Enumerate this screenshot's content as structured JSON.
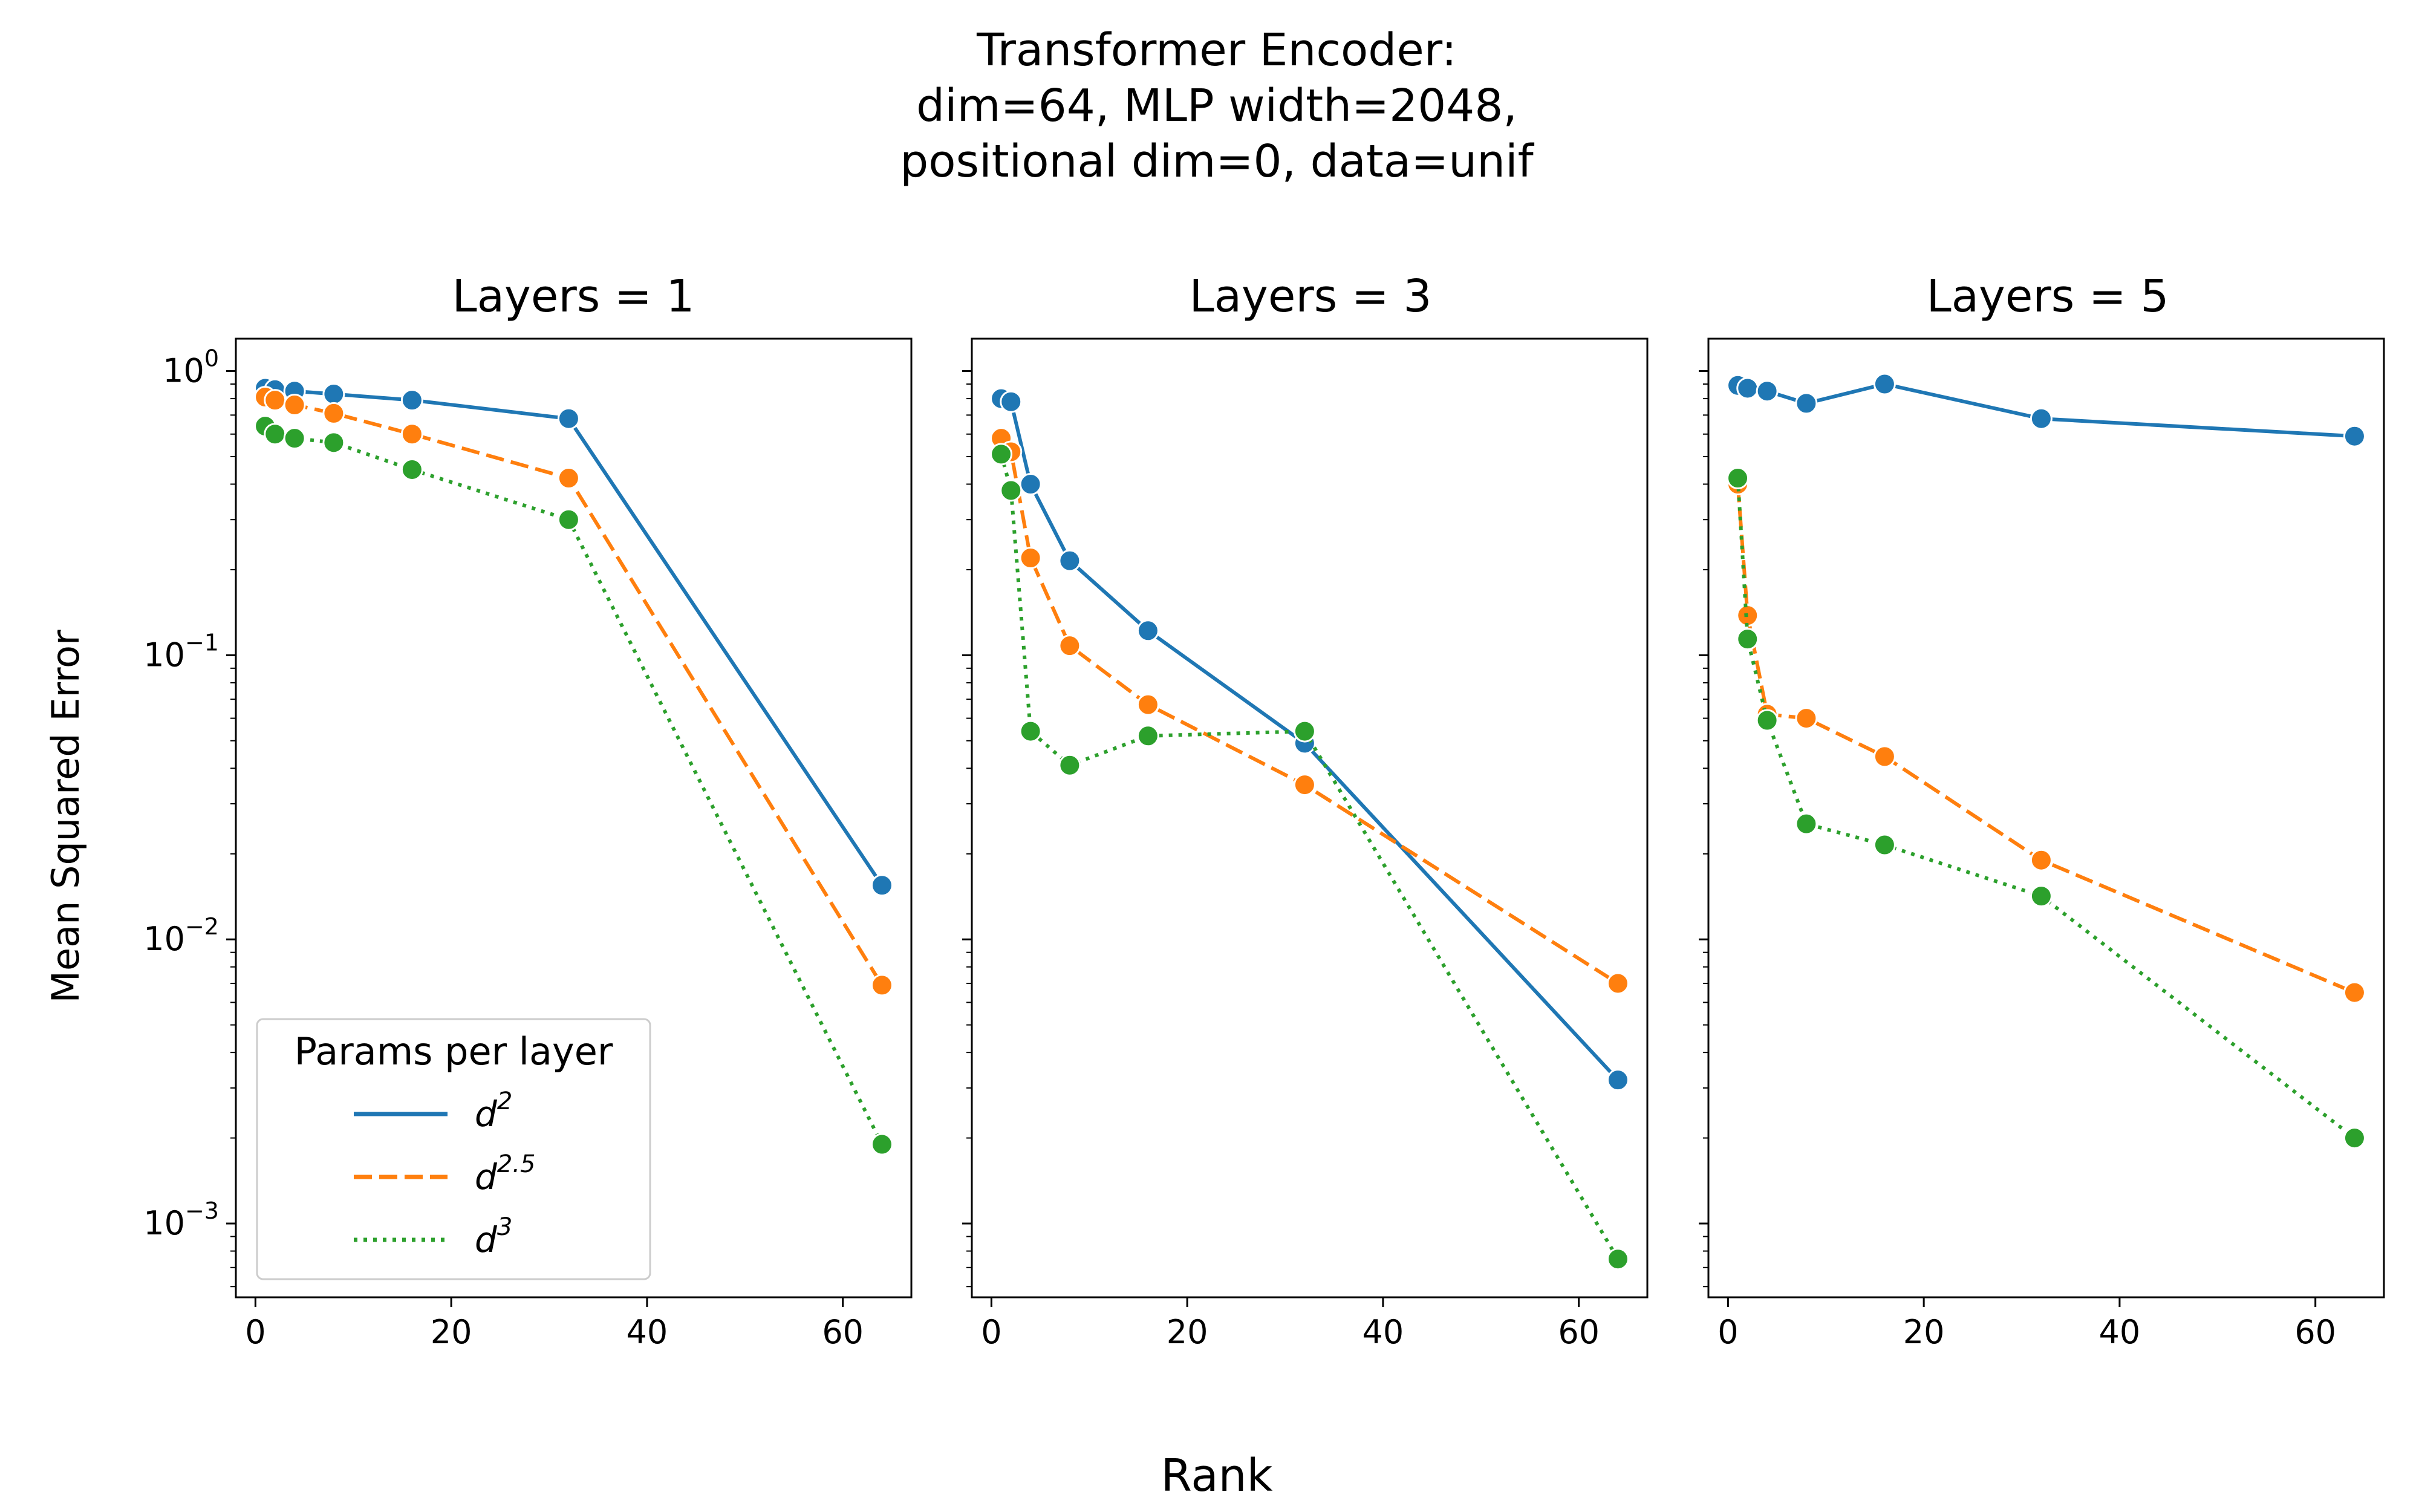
{
  "figure": {
    "suptitle_lines": [
      "Transformer Encoder:",
      "dim=64, MLP width=2048,",
      "positional dim=0, data=unif"
    ],
    "xlabel": "Rank",
    "ylabel": "Mean Squared Error"
  },
  "legend": {
    "title": "Params per layer",
    "entries": [
      {
        "base": "d",
        "exp": "2",
        "color": "#1f77b4",
        "dash": "solid"
      },
      {
        "base": "d",
        "exp": "2.5",
        "color": "#ff7f0e",
        "dash": "dashed"
      },
      {
        "base": "d",
        "exp": "3",
        "color": "#2ca02c",
        "dash": "dotted"
      }
    ]
  },
  "chart_data": [
    {
      "type": "line",
      "title": "Layers = 1",
      "xlabel": "Rank",
      "ylabel": "Mean Squared Error",
      "yscale": "log",
      "xlim": [
        -2,
        67
      ],
      "ylim": [
        0.00055,
        1.3
      ],
      "xticks": [
        "0",
        "20",
        "40",
        "60"
      ],
      "yticks": [
        {
          "base": "10",
          "exp": "0"
        },
        {
          "base": "10",
          "exp": "−1"
        },
        {
          "base": "10",
          "exp": "−2"
        },
        {
          "base": "10",
          "exp": "−3"
        }
      ],
      "x": [
        1,
        2,
        4,
        8,
        16,
        32,
        64
      ],
      "series": [
        {
          "name": "d^2",
          "color": "#1f77b4",
          "dash": "solid",
          "values": [
            0.87,
            0.86,
            0.85,
            0.83,
            0.79,
            0.68,
            0.0155
          ]
        },
        {
          "name": "d^2.5",
          "color": "#ff7f0e",
          "dash": "dashed",
          "values": [
            0.81,
            0.79,
            0.76,
            0.71,
            0.6,
            0.42,
            0.0069
          ]
        },
        {
          "name": "d^3",
          "color": "#2ca02c",
          "dash": "dotted",
          "values": [
            0.64,
            0.6,
            0.58,
            0.56,
            0.45,
            0.3,
            0.0019
          ]
        }
      ]
    },
    {
      "type": "line",
      "title": "Layers = 3",
      "xlabel": "Rank",
      "yscale": "log",
      "xlim": [
        -2,
        67
      ],
      "ylim": [
        0.00055,
        1.3
      ],
      "xticks": [
        "0",
        "20",
        "40",
        "60"
      ],
      "x": [
        1,
        2,
        4,
        8,
        16,
        32,
        64
      ],
      "series": [
        {
          "name": "d^2",
          "color": "#1f77b4",
          "dash": "solid",
          "values": [
            0.8,
            0.78,
            0.4,
            0.215,
            0.122,
            0.049,
            0.0032
          ]
        },
        {
          "name": "d^2.5",
          "color": "#ff7f0e",
          "dash": "dashed",
          "values": [
            0.58,
            0.52,
            0.22,
            0.108,
            0.067,
            0.035,
            0.007
          ]
        },
        {
          "name": "d^3",
          "color": "#2ca02c",
          "dash": "dotted",
          "values": [
            0.51,
            0.38,
            0.054,
            0.041,
            0.052,
            0.054,
            0.00075
          ]
        }
      ]
    },
    {
      "type": "line",
      "title": "Layers = 5",
      "xlabel": "Rank",
      "yscale": "log",
      "xlim": [
        -2,
        67
      ],
      "ylim": [
        0.00055,
        1.3
      ],
      "xticks": [
        "0",
        "20",
        "40",
        "60"
      ],
      "x": [
        1,
        2,
        4,
        8,
        16,
        32,
        64
      ],
      "series": [
        {
          "name": "d^2",
          "color": "#1f77b4",
          "dash": "solid",
          "values": [
            0.89,
            0.87,
            0.85,
            0.77,
            0.9,
            0.68,
            0.59
          ]
        },
        {
          "name": "d^2.5",
          "color": "#ff7f0e",
          "dash": "dashed",
          "values": [
            0.4,
            0.138,
            0.062,
            0.06,
            0.044,
            0.019,
            0.0065
          ]
        },
        {
          "name": "d^3",
          "color": "#2ca02c",
          "dash": "dotted",
          "values": [
            0.42,
            0.114,
            0.059,
            0.0255,
            0.0215,
            0.0142,
            0.002
          ]
        }
      ]
    }
  ]
}
